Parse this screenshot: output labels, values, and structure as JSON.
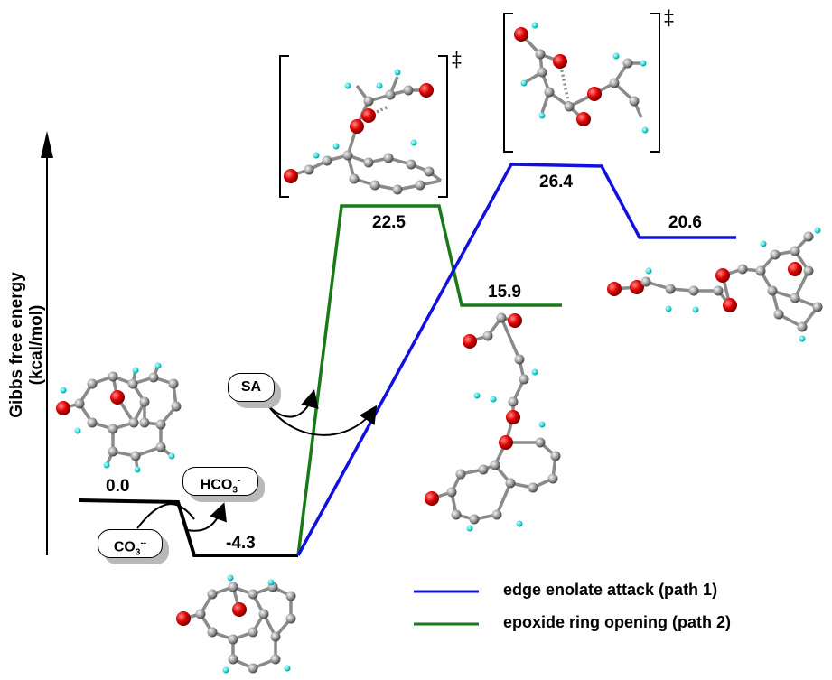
{
  "axis": {
    "ylabel": "Gibbs free energy (kcal/mol)"
  },
  "energies": {
    "start": "0.0",
    "intermediate": "-4.3",
    "ts_path2": "22.5",
    "product_path2": "15.9",
    "ts_path1": "26.4",
    "product_path1": "20.6"
  },
  "species": {
    "carbonate": {
      "base": "CO",
      "sub": "3",
      "sup": "--"
    },
    "bicarbonate": {
      "base": "HCO",
      "sub": "3",
      "sup": "-"
    },
    "sa": "SA"
  },
  "ts_marker": "‡",
  "legend": [
    {
      "label": "edge enolate attack (path 1)",
      "color": "#1010e0"
    },
    {
      "label": "epoxide ring opening (path 2)",
      "color": "#1a7a1a"
    }
  ],
  "colors": {
    "baseline": "#000000",
    "oxygen": "#e00000",
    "carbon": "#9a9a9a",
    "hydrogen": "#29d6d6"
  }
}
